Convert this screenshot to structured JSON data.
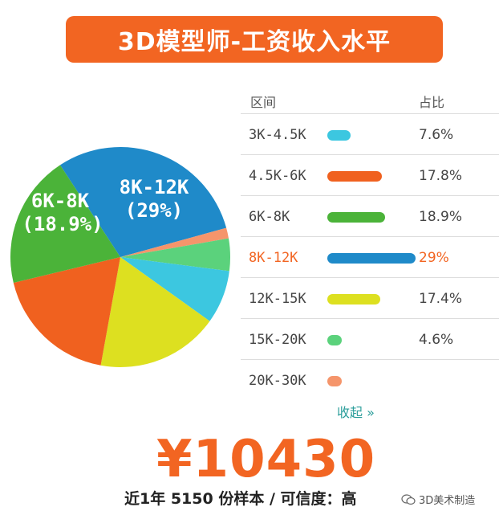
{
  "title": "3D模型师-工资收入水平",
  "legend_header": {
    "range": "区间",
    "share": "占比"
  },
  "chart_data": {
    "type": "pie",
    "title": "3D模型师-工资收入水平",
    "slices": [
      {
        "label": "8K-12K",
        "value": 29,
        "pct": "29%",
        "color": "#1f8ac9",
        "highlight": true
      },
      {
        "label": "20K-30K",
        "value": 1.5,
        "pct": "",
        "color": "#f5956b"
      },
      {
        "label": "15K-20K",
        "value": 4.6,
        "pct": "4.6%",
        "color": "#5bd27c"
      },
      {
        "label": "3K-4.5K",
        "value": 7.6,
        "pct": "7.6%",
        "color": "#3cc7e0"
      },
      {
        "label": "12K-15K",
        "value": 17.4,
        "pct": "17.4%",
        "color": "#dde020"
      },
      {
        "label": "4.5K-6K",
        "value": 17.8,
        "pct": "17.8%",
        "color": "#f0611f"
      },
      {
        "label": "6K-8K",
        "value": 18.9,
        "pct": "18.9%",
        "color": "#4bb339"
      }
    ],
    "pie_labels": [
      {
        "line1": "8K-12K",
        "line2": "(29%)"
      },
      {
        "line1": "6K-8K",
        "line2": "(18.9%)"
      }
    ]
  },
  "legend": [
    {
      "range": "3K-4.5K",
      "pct": "7.6%",
      "value": 7.6,
      "color": "#3cc7e0"
    },
    {
      "range": "4.5K-6K",
      "pct": "17.8%",
      "value": 17.8,
      "color": "#f0611f"
    },
    {
      "range": "6K-8K",
      "pct": "18.9%",
      "value": 18.9,
      "color": "#4bb339"
    },
    {
      "range": "8K-12K",
      "pct": "29%",
      "value": 29,
      "color": "#1f8ac9",
      "highlight": true
    },
    {
      "range": "12K-15K",
      "pct": "17.4%",
      "value": 17.4,
      "color": "#dde020"
    },
    {
      "range": "15K-20K",
      "pct": "4.6%",
      "value": 4.6,
      "color": "#5bd27c"
    },
    {
      "range": "20K-30K",
      "pct": "",
      "value": 1.5,
      "color": "#f5956b"
    }
  ],
  "collapse_label": "收起 »",
  "average_salary": "¥10430",
  "sample_info": "近1年 5150 份样本 / 可信度：高",
  "watermark": "3D美术制造"
}
